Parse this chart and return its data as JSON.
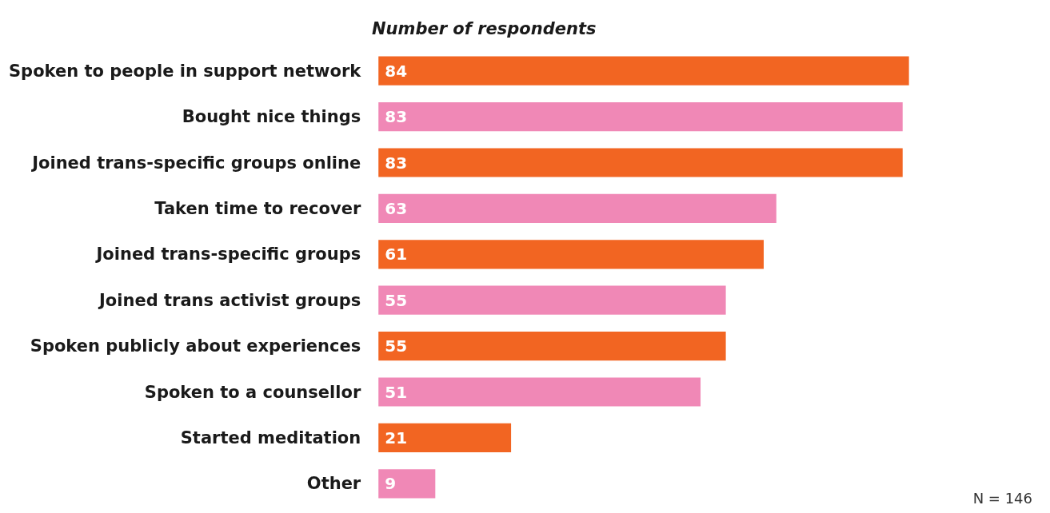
{
  "chart_data": {
    "type": "bar",
    "orientation": "horizontal",
    "title": "Number of respondents",
    "categories": [
      "Spoken to people in support network",
      "Bought nice things",
      "Joined trans-specific groups online",
      "Taken time to recover",
      "Joined trans-specific groups",
      "Joined trans activist groups",
      "Spoken publicly about experiences",
      "Spoken to a counsellor",
      "Started meditation",
      "Other"
    ],
    "values": [
      84,
      83,
      83,
      63,
      61,
      55,
      55,
      51,
      21,
      9
    ],
    "colors": [
      "#f26522",
      "#f088b6",
      "#f26522",
      "#f088b6",
      "#f26522",
      "#f088b6",
      "#f26522",
      "#f088b6",
      "#f26522",
      "#f088b6"
    ],
    "data_labels": true,
    "annotations": [
      "N = 146"
    ]
  }
}
